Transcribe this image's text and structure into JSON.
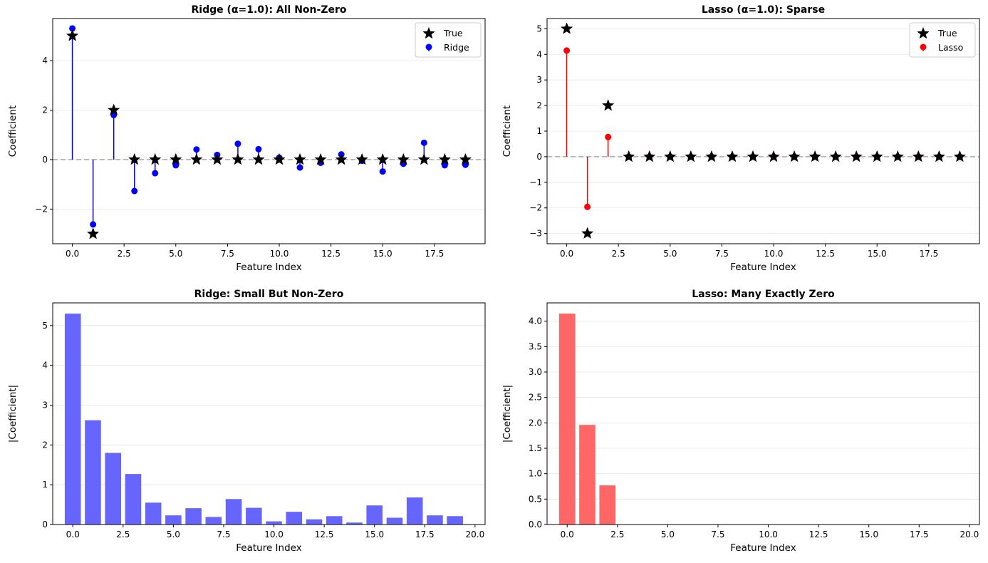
{
  "chart_data": [
    {
      "type": "stem",
      "title": "Ridge (α=1.0): All Non-Zero",
      "xlabel": "Feature Index",
      "ylabel": "Coefficient",
      "xlim": [
        -0.95,
        19.95
      ],
      "ylim": [
        -3.4,
        5.7
      ],
      "xticks": [
        0.0,
        2.5,
        5.0,
        7.5,
        10.0,
        12.5,
        15.0,
        17.5
      ],
      "xtick_labels": [
        "0.0",
        "2.5",
        "5.0",
        "7.5",
        "10.0",
        "12.5",
        "15.0",
        "17.5"
      ],
      "yticks": [
        -2,
        0,
        2,
        4
      ],
      "ytick_labels": [
        "−2",
        "0",
        "2",
        "4"
      ],
      "x": [
        0,
        1,
        2,
        3,
        4,
        5,
        6,
        7,
        8,
        9,
        10,
        11,
        12,
        13,
        14,
        15,
        16,
        17,
        18,
        19
      ],
      "series": [
        {
          "name": "True",
          "marker": "star",
          "color": "#000000",
          "values": [
            5,
            -3,
            2,
            0,
            0,
            0,
            0,
            0,
            0,
            0,
            0,
            0,
            0,
            0,
            0,
            0,
            0,
            0,
            0,
            0
          ]
        },
        {
          "name": "Ridge",
          "marker": "circle",
          "color": "#0000ff",
          "values": [
            5.3,
            -2.62,
            1.8,
            -1.27,
            -0.55,
            -0.23,
            0.41,
            0.19,
            0.64,
            0.42,
            0.08,
            -0.32,
            -0.13,
            0.21,
            -0.05,
            -0.48,
            -0.17,
            0.68,
            -0.23,
            -0.21
          ]
        }
      ],
      "legend": {
        "position": "upper-right",
        "entries": [
          "True",
          "Ridge"
        ]
      },
      "grid": "y",
      "zero_line": true
    },
    {
      "type": "stem",
      "title": "Lasso (α=1.0): Sparse",
      "xlabel": "Feature Index",
      "ylabel": "Coefficient",
      "xlim": [
        -0.95,
        19.95
      ],
      "ylim": [
        -3.4,
        5.4
      ],
      "xticks": [
        0.0,
        2.5,
        5.0,
        7.5,
        10.0,
        12.5,
        15.0,
        17.5
      ],
      "xtick_labels": [
        "0.0",
        "2.5",
        "5.0",
        "7.5",
        "10.0",
        "12.5",
        "15.0",
        "17.5"
      ],
      "yticks": [
        -3,
        -2,
        -1,
        0,
        1,
        2,
        3,
        4,
        5
      ],
      "ytick_labels": [
        "−3",
        "−2",
        "−1",
        "0",
        "1",
        "2",
        "3",
        "4",
        "5"
      ],
      "x": [
        0,
        1,
        2,
        3,
        4,
        5,
        6,
        7,
        8,
        9,
        10,
        11,
        12,
        13,
        14,
        15,
        16,
        17,
        18,
        19
      ],
      "series": [
        {
          "name": "True",
          "marker": "star",
          "color": "#000000",
          "values": [
            5,
            -3,
            2,
            0,
            0,
            0,
            0,
            0,
            0,
            0,
            0,
            0,
            0,
            0,
            0,
            0,
            0,
            0,
            0,
            0
          ]
        },
        {
          "name": "Lasso",
          "marker": "circle",
          "color": "#ff0000",
          "values": [
            4.15,
            -1.96,
            0.77,
            0,
            0,
            0,
            0,
            0,
            0,
            0,
            0,
            0,
            0,
            0,
            0,
            0,
            0,
            0,
            0,
            0
          ]
        }
      ],
      "legend": {
        "position": "upper-right",
        "entries": [
          "True",
          "Lasso"
        ]
      },
      "grid": "y",
      "zero_line": true
    },
    {
      "type": "bar",
      "title": "Ridge: Small But Non-Zero",
      "xlabel": "Feature Index",
      "ylabel": "|Coefficient|",
      "xlim": [
        -1.0,
        20.5
      ],
      "ylim": [
        0,
        5.57
      ],
      "xticks": [
        0.0,
        2.5,
        5.0,
        7.5,
        10.0,
        12.5,
        15.0,
        17.5,
        20.0
      ],
      "xtick_labels": [
        "0.0",
        "2.5",
        "5.0",
        "7.5",
        "10.0",
        "12.5",
        "15.0",
        "17.5",
        "20.0"
      ],
      "yticks": [
        0,
        1,
        2,
        3,
        4,
        5
      ],
      "ytick_labels": [
        "0",
        "1",
        "2",
        "3",
        "4",
        "5"
      ],
      "x": [
        0,
        1,
        2,
        3,
        4,
        5,
        6,
        7,
        8,
        9,
        10,
        11,
        12,
        13,
        14,
        15,
        16,
        17,
        18,
        19
      ],
      "values": [
        5.3,
        2.62,
        1.8,
        1.27,
        0.55,
        0.23,
        0.41,
        0.19,
        0.64,
        0.42,
        0.08,
        0.32,
        0.13,
        0.21,
        0.05,
        0.48,
        0.17,
        0.68,
        0.23,
        0.21
      ],
      "color": "#6666ff",
      "grid": "y"
    },
    {
      "type": "bar",
      "title": "Lasso: Many Exactly Zero",
      "xlabel": "Feature Index",
      "ylabel": "|Coefficient|",
      "xlim": [
        -1.0,
        20.5
      ],
      "ylim": [
        0,
        4.36
      ],
      "xticks": [
        0.0,
        2.5,
        5.0,
        7.5,
        10.0,
        12.5,
        15.0,
        17.5,
        20.0
      ],
      "xtick_labels": [
        "0.0",
        "2.5",
        "5.0",
        "7.5",
        "10.0",
        "12.5",
        "15.0",
        "17.5",
        "20.0"
      ],
      "yticks": [
        0,
        0.5,
        1.0,
        1.5,
        2.0,
        2.5,
        3.0,
        3.5,
        4.0
      ],
      "ytick_labels": [
        "0.0",
        "0.5",
        "1.0",
        "1.5",
        "2.0",
        "2.5",
        "3.0",
        "3.5",
        "4.0"
      ],
      "x": [
        0,
        1,
        2,
        3,
        4,
        5,
        6,
        7,
        8,
        9,
        10,
        11,
        12,
        13,
        14,
        15,
        16,
        17,
        18,
        19
      ],
      "values": [
        4.15,
        1.96,
        0.77,
        0,
        0,
        0,
        0,
        0,
        0,
        0,
        0,
        0,
        0,
        0,
        0,
        0,
        0,
        0,
        0,
        0
      ],
      "color": "#ff6666",
      "grid": "y"
    }
  ]
}
